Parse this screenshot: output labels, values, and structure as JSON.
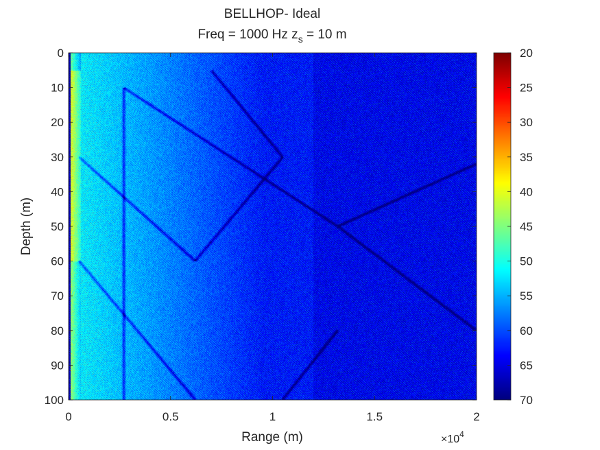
{
  "chart_data": {
    "type": "heatmap",
    "title": "BELLHOP- Ideal",
    "subtitle_prefix": "Freq = 1000 Hz    z",
    "subtitle_sub": "s",
    "subtitle_suffix": " = 10 m",
    "xlabel": "Range (m)",
    "ylabel": "Depth (m)",
    "x_multiplier_text": "×10",
    "x_multiplier_exp": "4",
    "xlim": [
      0,
      2
    ],
    "ylim": [
      0,
      100
    ],
    "x_ticks": [
      "0",
      "0.5",
      "1",
      "1.5",
      "2"
    ],
    "y_ticks": [
      "0",
      "10",
      "20",
      "30",
      "40",
      "50",
      "60",
      "70",
      "80",
      "90",
      "100"
    ],
    "colorbar": {
      "range": [
        20,
        70
      ],
      "reversed": true,
      "ticks": [
        "20",
        "25",
        "30",
        "35",
        "40",
        "45",
        "50",
        "55",
        "60",
        "65",
        "70"
      ],
      "colormap": "jet"
    },
    "features": {
      "source_depth_m": 10,
      "convergence_zone_range_x1e4": 1.32,
      "convergence_zone_depth_m": 50,
      "near_field_strong_loss_max": 38,
      "background_loss": 63
    }
  }
}
